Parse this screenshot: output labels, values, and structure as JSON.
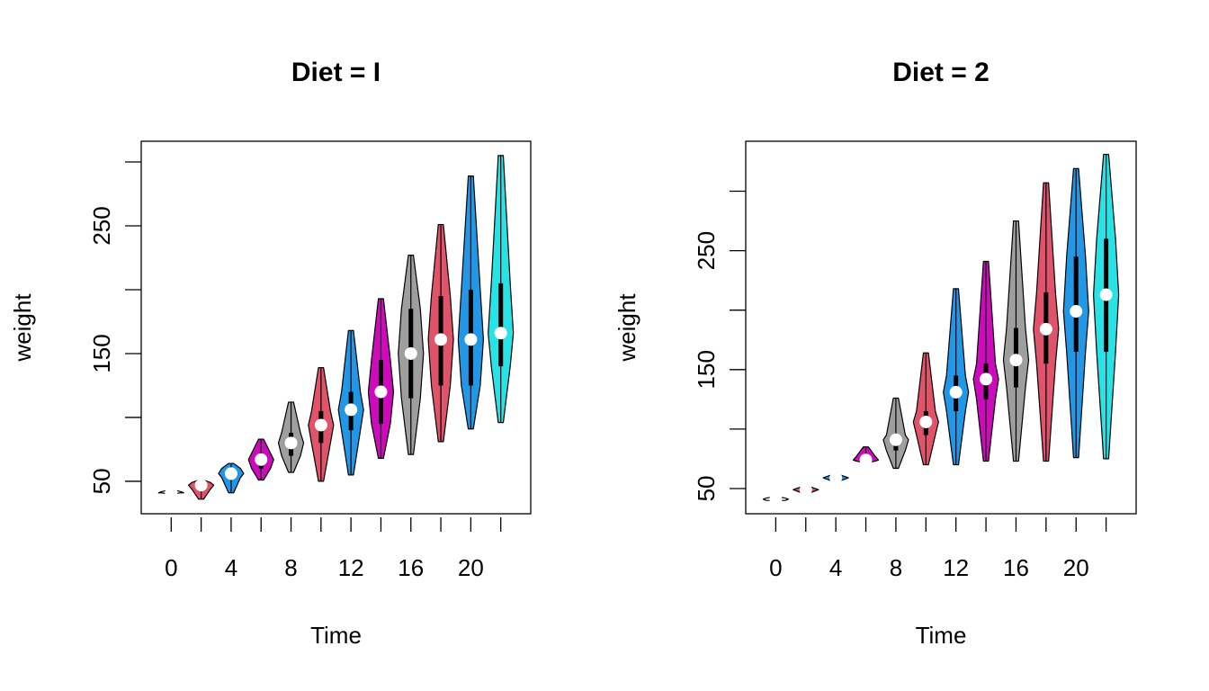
{
  "chart_data": [
    {
      "type": "violin",
      "title": "Diet = I",
      "xlabel": "Time",
      "ylabel": "weight",
      "categories": [
        "0",
        null,
        "4",
        null,
        "8",
        null,
        "12",
        null,
        "16",
        null,
        "20",
        null
      ],
      "colors": [
        "#FFFFFF",
        "#DF536B",
        "#2297E6",
        "#CD0BBC",
        "#9E9E9E",
        "#DF536B",
        "#2297E6",
        "#CD0BBC",
        "#9E9E9E",
        "#DF536B",
        "#2297E6",
        "#28E2E5"
      ],
      "min": [
        40,
        36,
        41,
        51,
        57,
        50,
        55,
        68,
        71,
        81,
        91,
        96
      ],
      "q1": [
        41,
        44,
        53,
        60,
        70,
        80,
        90,
        95,
        115,
        125,
        125,
        140
      ],
      "median": [
        41,
        47,
        56,
        67,
        80,
        94,
        106,
        120,
        150,
        161,
        161,
        166
      ],
      "q3": [
        42,
        49,
        60,
        72,
        88,
        105,
        120,
        145,
        185,
        195,
        200,
        205
      ],
      "max": [
        43,
        51,
        64,
        83,
        112,
        139,
        168,
        193,
        227,
        251,
        289,
        305
      ],
      "ylim": [
        24.6,
        316.2
      ],
      "yticks": [
        50,
        150,
        250
      ],
      "ytick_marks": [
        50,
        100,
        150,
        200,
        250,
        300
      ]
    },
    {
      "type": "violin",
      "title": "Diet = 2",
      "xlabel": "Time",
      "ylabel": "weight",
      "categories": [
        "0",
        null,
        "4",
        null,
        "8",
        null,
        "12",
        null,
        "16",
        null,
        "20",
        null
      ],
      "colors": [
        "#FFFFFF",
        "#DF536B",
        "#2297E6",
        "#CD0BBC",
        "#9E9E9E",
        "#DF536B",
        "#2297E6",
        "#CD0BBC",
        "#9E9E9E",
        "#DF536B",
        "#2297E6",
        "#28E2E5"
      ],
      "min": [
        40,
        46,
        56,
        72,
        67,
        70,
        70,
        73,
        73,
        73,
        76,
        75
      ],
      "q1": [
        40,
        48,
        58,
        73,
        82,
        95,
        115,
        125,
        135,
        155,
        165,
        165
      ],
      "median": [
        41,
        49,
        59,
        74,
        91,
        106,
        131,
        142,
        158,
        184,
        199,
        213
      ],
      "q3": [
        42,
        50,
        60,
        77,
        95,
        115,
        145,
        155,
        185,
        215,
        245,
        260
      ],
      "max": [
        43,
        52,
        62,
        85,
        126,
        164,
        218,
        241,
        275,
        307,
        319,
        331
      ],
      "ylim": [
        28.8,
        342
      ],
      "yticks": [
        50,
        150,
        250
      ],
      "ytick_marks": [
        50,
        100,
        150,
        200,
        250,
        300
      ]
    }
  ]
}
